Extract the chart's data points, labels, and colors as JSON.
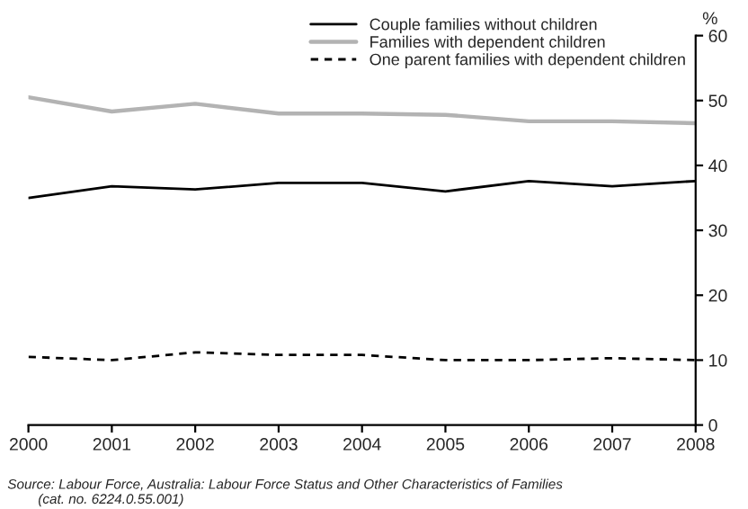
{
  "chart_data": {
    "type": "line",
    "ylabel": "%",
    "x": [
      2000,
      2001,
      2002,
      2003,
      2004,
      2005,
      2006,
      2007,
      2008
    ],
    "series": [
      {
        "name": "Couple families without children",
        "color": "#000000",
        "line_style": "solid",
        "values": [
          35,
          36.8,
          36.3,
          37.3,
          37.3,
          36,
          37.6,
          36.8,
          37.6
        ]
      },
      {
        "name": "Families with dependent children",
        "color": "#b3b3b3",
        "line_style": "solid",
        "values": [
          50.5,
          48.3,
          49.5,
          48,
          48,
          47.8,
          46.8,
          46.8,
          46.5
        ]
      },
      {
        "name": "One parent families with dependent children",
        "color": "#000000",
        "line_style": "dashed",
        "values": [
          10.5,
          10,
          11.2,
          10.8,
          10.8,
          10,
          10,
          10.3,
          10
        ]
      }
    ],
    "xlim": [
      2000,
      2008
    ],
    "xticks": [
      2000,
      2001,
      2002,
      2003,
      2004,
      2005,
      2006,
      2007,
      2008
    ],
    "ylim": [
      0,
      60
    ],
    "yticks": [
      0,
      10,
      20,
      30,
      40,
      50,
      60
    ],
    "grid": false,
    "legend": "top right",
    "annotations": [
      "Source: Labour Force, Australia: Labour Force Status and Other Characteristics of Families\n        (cat. no. 6224.0.55.001)"
    ]
  }
}
